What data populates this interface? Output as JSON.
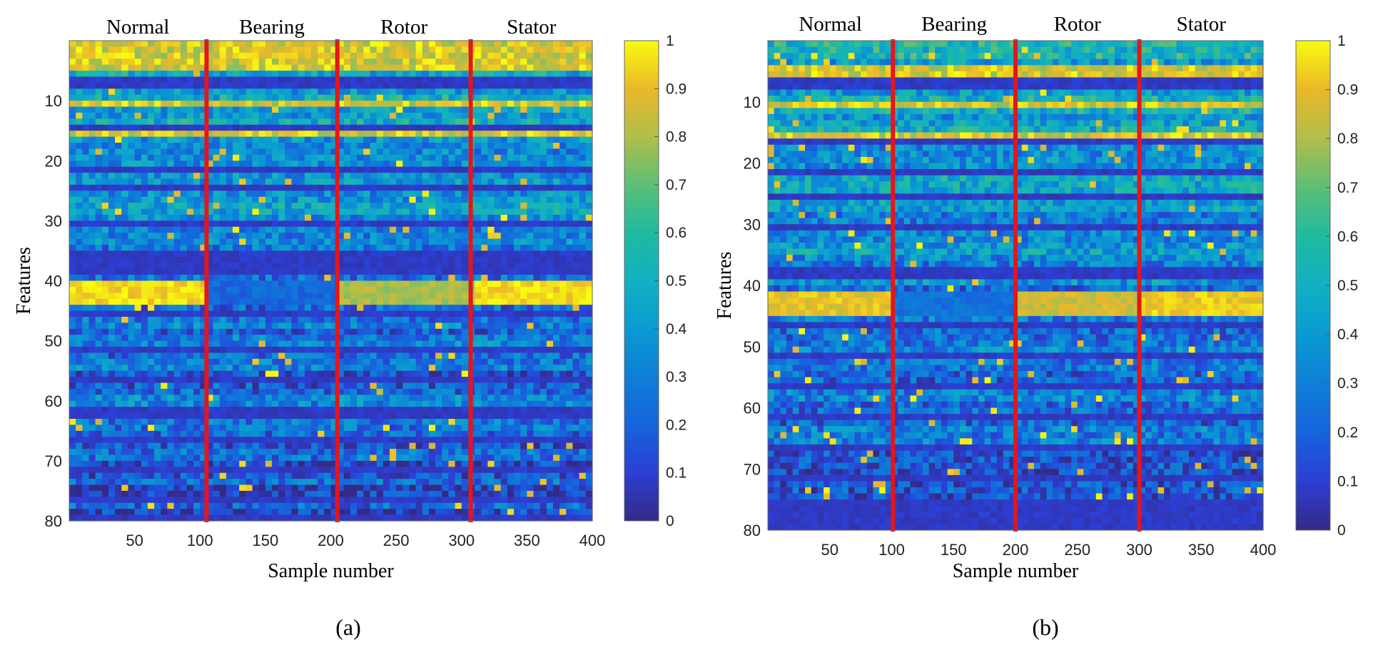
{
  "chart_data": [
    {
      "type": "heatmap",
      "panel_label": "(a)",
      "xlabel": "Sample number",
      "ylabel": "Features",
      "xlim": [
        1,
        400
      ],
      "ylim": [
        1,
        80
      ],
      "x_ticks": [
        50,
        100,
        150,
        200,
        250,
        300,
        350,
        400
      ],
      "y_ticks": [
        10,
        20,
        30,
        40,
        50,
        60,
        70,
        80
      ],
      "class_labels": [
        "Normal",
        "Bearing",
        "Rotor",
        "Stator"
      ],
      "class_boundaries": [
        105,
        205,
        307
      ],
      "colorbar": {
        "range": [
          0,
          1
        ],
        "ticks": [
          0,
          0.1,
          0.2,
          0.3,
          0.4,
          0.5,
          0.6,
          0.7,
          0.8,
          0.9,
          1
        ],
        "tick_labels": [
          "0",
          "0.1",
          "0.2",
          "0.3",
          "0.4",
          "0.5",
          "0.6",
          "0.7",
          "0.8",
          "0.9",
          "1"
        ],
        "colormap": "parula"
      },
      "feature_levels": {
        "very_high": [
          1,
          2,
          3,
          4,
          5,
          11,
          16
        ],
        "high_band_by_class": {
          "rows": [
            41,
            42,
            43,
            44
          ],
          "values": {
            "Normal": 0.95,
            "Bearing": 0.22,
            "Rotor": 0.8,
            "Stator": 0.96
          }
        },
        "very_low": [
          7,
          8,
          15,
          22,
          25,
          31,
          36,
          37,
          38,
          39,
          46,
          52,
          57,
          62,
          63,
          67,
          72,
          77,
          80
        ],
        "overall_range": [
          0,
          1
        ]
      }
    },
    {
      "type": "heatmap",
      "panel_label": "(b)",
      "xlabel": "Sample number",
      "ylabel": "Features",
      "xlim": [
        1,
        400
      ],
      "ylim": [
        1,
        80
      ],
      "x_ticks": [
        50,
        100,
        150,
        200,
        250,
        300,
        350,
        400
      ],
      "y_ticks": [
        10,
        20,
        30,
        40,
        50,
        60,
        70,
        80
      ],
      "class_labels": [
        "Normal",
        "Bearing",
        "Rotor",
        "Stator"
      ],
      "class_boundaries": [
        101,
        200,
        300
      ],
      "colorbar": {
        "range": [
          0,
          1
        ],
        "ticks": [
          0,
          0.1,
          0.2,
          0.3,
          0.4,
          0.5,
          0.6,
          0.7,
          0.8,
          0.9,
          1
        ],
        "tick_labels": [
          "0",
          "0.1",
          "0.2",
          "0.3",
          "0.4",
          "0.5",
          "0.6",
          "0.7",
          "0.8",
          "0.9",
          "1"
        ],
        "colormap": "parula"
      },
      "feature_levels": {
        "very_high": [
          5,
          6,
          11,
          16
        ],
        "high_band_by_class": {
          "rows": [
            42,
            43,
            44,
            45
          ],
          "values": {
            "Normal": 0.9,
            "Bearing": 0.25,
            "Rotor": 0.85,
            "Stator": 0.92
          }
        },
        "very_low": [
          7,
          8,
          17,
          22,
          26,
          31,
          38,
          39,
          47,
          52,
          57,
          62,
          67,
          72,
          76,
          77,
          78,
          79,
          80
        ],
        "overall_range": [
          0,
          1
        ]
      }
    }
  ]
}
